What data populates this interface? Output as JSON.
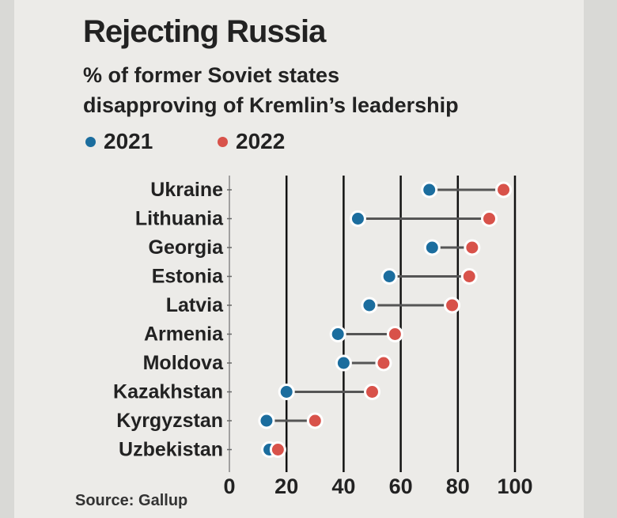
{
  "chart_data": {
    "type": "dumbbell",
    "title": "Rejecting Russia",
    "subtitle": [
      "% of former Soviet states",
      "disapproving of Kremlin’s leadership"
    ],
    "source": "Source: Gallup",
    "categories": [
      "Ukraine",
      "Lithuania",
      "Georgia",
      "Estonia",
      "Latvia",
      "Armenia",
      "Moldova",
      "Kazakhstan",
      "Kyrgyzstan",
      "Uzbekistan"
    ],
    "series": [
      {
        "name": "2021",
        "color": "#1b6d9e",
        "values": [
          70,
          45,
          71,
          56,
          49,
          38,
          40,
          20,
          13,
          14
        ]
      },
      {
        "name": "2022",
        "color": "#d8524a",
        "values": [
          96,
          91,
          85,
          84,
          78,
          58,
          54,
          50,
          30,
          17
        ]
      }
    ],
    "xlim": [
      0,
      100
    ],
    "xticks": [
      "0",
      "20",
      "40",
      "60",
      "80",
      "100"
    ],
    "grid": "vertical",
    "legend": "top-left"
  }
}
